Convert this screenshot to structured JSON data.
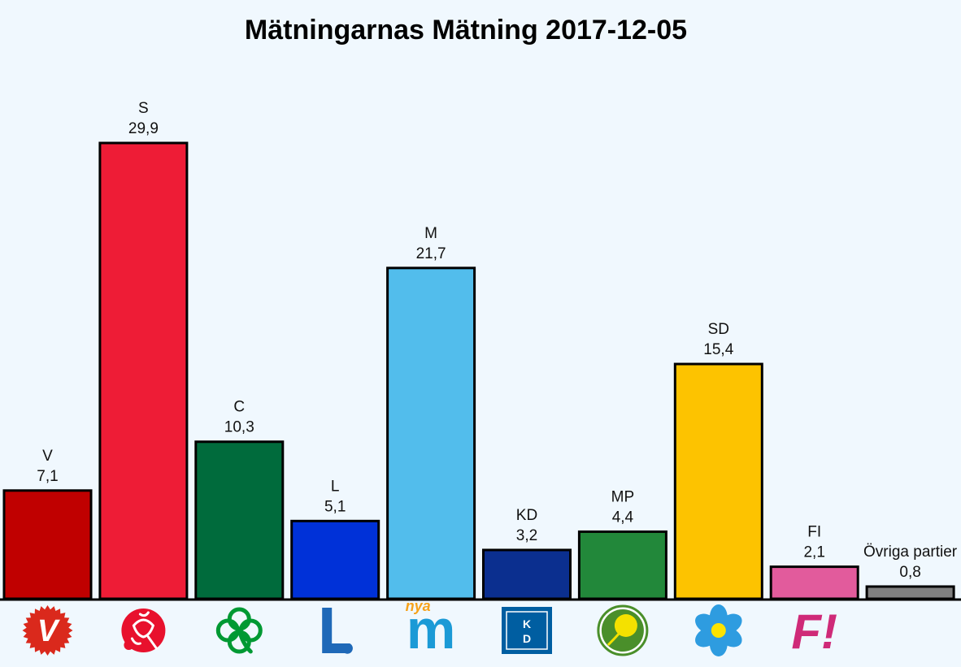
{
  "chart_data": {
    "type": "bar",
    "title": "Mätningarnas Mätning 2017-12-05",
    "xlabel": "",
    "ylabel": "",
    "ylim": [
      0,
      29.9
    ],
    "grid": false,
    "categories": [
      "V",
      "S",
      "C",
      "L",
      "M",
      "KD",
      "MP",
      "SD",
      "FI",
      "Övriga partier"
    ],
    "values": [
      7.1,
      29.9,
      10.3,
      5.1,
      21.7,
      3.2,
      4.4,
      15.4,
      2.1,
      0.8
    ],
    "value_labels": [
      "7,1",
      "29,9",
      "10,3",
      "5,1",
      "21,7",
      "3,2",
      "4,4",
      "15,4",
      "2,1",
      "0,8"
    ],
    "colors": [
      "#c00000",
      "#ee1c36",
      "#006b3c",
      "#0031d8",
      "#52bdec",
      "#0b2f8f",
      "#22883a",
      "#fdc300",
      "#e25b9c",
      "#808080"
    ]
  },
  "logos": [
    {
      "party": "V",
      "icon": "v-party-logo-icon",
      "text": "V",
      "color": "#da291c"
    },
    {
      "party": "S",
      "icon": "s-rose-logo-icon",
      "color": "#e8112d"
    },
    {
      "party": "C",
      "icon": "c-clover-logo-icon",
      "color": "#009933"
    },
    {
      "party": "L",
      "icon": "l-party-logo-icon",
      "text": "L",
      "color": "#1f69b8"
    },
    {
      "party": "M",
      "icon": "m-party-logo-icon",
      "text": "m",
      "subtext": "nya",
      "color": "#1b9ad6",
      "accent": "#f6a21b"
    },
    {
      "party": "KD",
      "icon": "kd-party-logo-icon",
      "text": "K",
      "text2": "D",
      "color": "#005ea1"
    },
    {
      "party": "MP",
      "icon": "mp-dandelion-logo-icon",
      "color": "#4a8f2a",
      "accent": "#f4e100"
    },
    {
      "party": "SD",
      "icon": "sd-blue-anemone-logo-icon",
      "color": "#2e9ce0",
      "accent": "#fce300"
    },
    {
      "party": "FI",
      "icon": "fi-party-logo-icon",
      "text": "F!",
      "color": "#cf2a78"
    }
  ]
}
